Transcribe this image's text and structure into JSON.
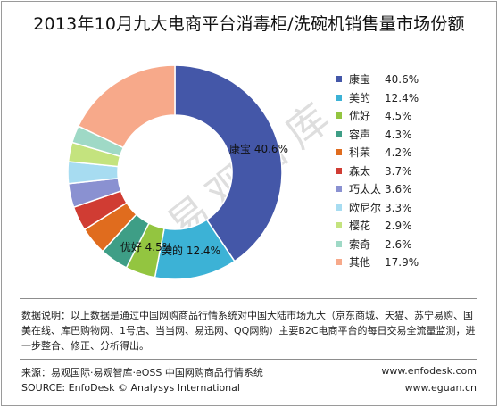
{
  "title": "2013年10月九大电商平台消毒柜/洗碗机销售量市场份额",
  "watermark": "易观智库",
  "chart_data": {
    "type": "pie",
    "title": "2013年10月九大电商平台消毒柜/洗碗机销售量市场份额",
    "categories": [
      "康宝",
      "美的",
      "优好",
      "容声",
      "科荣",
      "森太",
      "巧太太",
      "欧尼尔",
      "樱花",
      "索奇",
      "其他"
    ],
    "values": [
      40.6,
      12.4,
      4.5,
      4.3,
      4.2,
      3.7,
      3.6,
      3.3,
      2.9,
      2.6,
      17.9
    ],
    "value_labels": [
      "40.6%",
      "12.4%",
      "4.5%",
      "4.3%",
      "4.2%",
      "3.7%",
      "3.6%",
      "3.3%",
      "2.9%",
      "2.6%",
      "17.9%"
    ],
    "colors": [
      "#4457a8",
      "#3cb2d6",
      "#93c540",
      "#3e9e86",
      "#e06c1e",
      "#d03c33",
      "#8a91d1",
      "#a7dcf1",
      "#c4e37e",
      "#9fd9c6",
      "#f7a98a"
    ],
    "inner_labels": [
      {
        "index": 0,
        "text": "康宝  40.6%"
      },
      {
        "index": 1,
        "text": "美的  12.4%"
      },
      {
        "index": 2,
        "text": "优好  4.5%"
      }
    ],
    "legend_position": "right"
  },
  "note": "数据说明：以上数据是通过中国网购商品行情系统对中国大陆市场九大（京东商城、天猫、苏宁易购、国美在线、库巴购物网、1号店、当当网、易迅网、QQ网购）主要B2C电商平台的每日交易全流量监测，进一步整合、修正、分析得出。",
  "source_cn": "来源：易观国际·易观智库·eOSS 中国网购商品行情系统",
  "source_en": "SOURCE: EnfoDesk © Analysys International",
  "website_1": "www.enfodesk.com",
  "website_2": "www.eguan.cn"
}
